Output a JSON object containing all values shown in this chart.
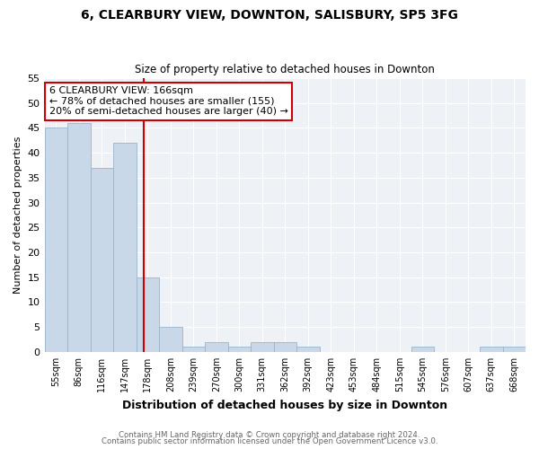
{
  "title_line1": "6, CLEARBURY VIEW, DOWNTON, SALISBURY, SP5 3FG",
  "title_line2": "Size of property relative to detached houses in Downton",
  "xlabel": "Distribution of detached houses by size in Downton",
  "ylabel": "Number of detached properties",
  "bin_labels": [
    "55sqm",
    "86sqm",
    "116sqm",
    "147sqm",
    "178sqm",
    "208sqm",
    "239sqm",
    "270sqm",
    "300sqm",
    "331sqm",
    "362sqm",
    "392sqm",
    "423sqm",
    "453sqm",
    "484sqm",
    "515sqm",
    "545sqm",
    "576sqm",
    "607sqm",
    "637sqm",
    "668sqm"
  ],
  "bar_values": [
    45,
    46,
    37,
    42,
    15,
    5,
    1,
    2,
    1,
    2,
    2,
    1,
    0,
    0,
    0,
    0,
    1,
    0,
    0,
    1,
    1
  ],
  "bar_color": "#c8d8e8",
  "bar_edgecolor": "#9ab4cc",
  "vline_x": 3.82,
  "vline_color": "#cc0000",
  "annotation_text": "6 CLEARBURY VIEW: 166sqm\n← 78% of detached houses are smaller (155)\n20% of semi-detached houses are larger (40) →",
  "annotation_box_color": "white",
  "annotation_box_edgecolor": "#cc0000",
  "ylim": [
    0,
    55
  ],
  "yticks": [
    0,
    5,
    10,
    15,
    20,
    25,
    30,
    35,
    40,
    45,
    50,
    55
  ],
  "footer_line1": "Contains HM Land Registry data © Crown copyright and database right 2024.",
  "footer_line2": "Contains public sector information licensed under the Open Government Licence v3.0.",
  "grid_color": "white",
  "fig_bg": "white",
  "plot_bg_color": "#eef2f7"
}
